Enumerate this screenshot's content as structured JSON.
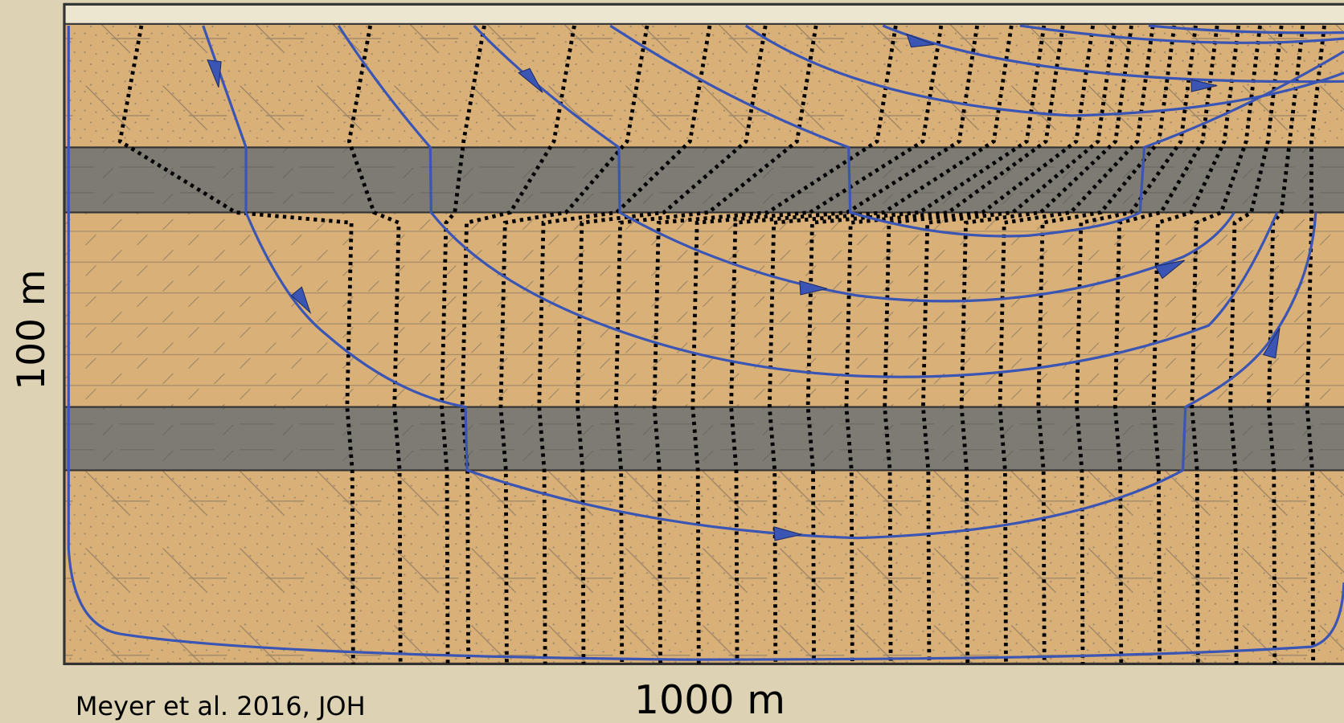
{
  "labels": {
    "vertical_scale": "100 m",
    "horizontal_scale": "1000 m",
    "citation": "Meyer et al. 2016, JOH"
  }
}
